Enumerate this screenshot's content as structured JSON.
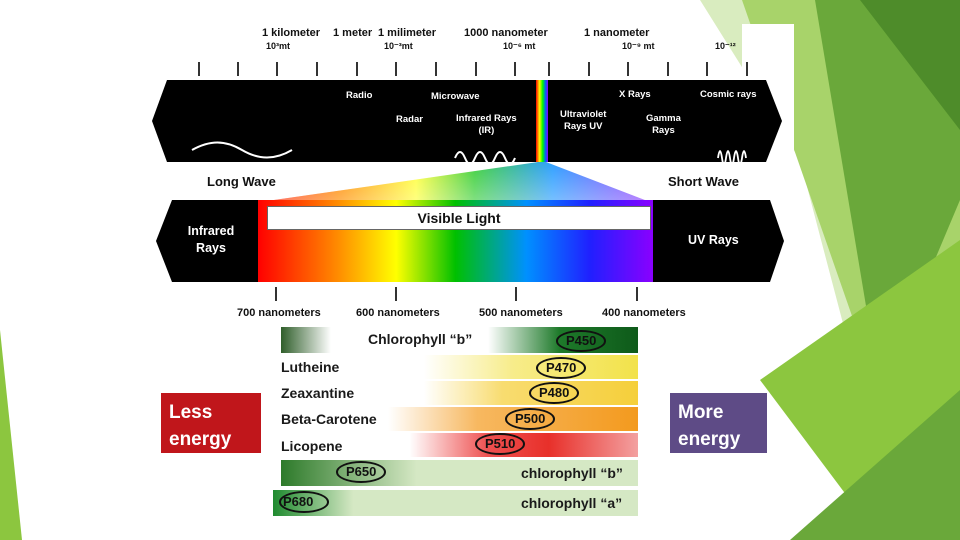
{
  "scale": {
    "labels": [
      "1 kilometer",
      "1 meter",
      "1 milimeter",
      "1000 nanometer",
      "1 nanometer"
    ],
    "subs": [
      "10³mt",
      "10⁻³mt",
      "10⁻⁶ mt",
      "10⁻⁹ mt",
      "10⁻¹²"
    ]
  },
  "bands": {
    "radio": "Radio",
    "microwave": "Microwave",
    "radar": "Radar",
    "infrared": "Infrared Rays",
    "infrared_abbr": "(IR)",
    "ultraviolet": "Ultraviolet",
    "ultraviolet_abbr": "Rays  UV",
    "xrays": "X Rays",
    "cosmic": "Cosmic rays",
    "gamma": "Gamma",
    "gamma2": "Rays"
  },
  "long_wave": "Long Wave",
  "short_wave": "Short Wave",
  "visible": {
    "title": "Visible Light",
    "left1": "Infrared",
    "left2": "Rays",
    "right": "UV Rays"
  },
  "nm": [
    "700 nanometers",
    "600 nanometers",
    "500 nanometers",
    "400 nanometers"
  ],
  "pigments": [
    {
      "name": "Chlorophyll  “b”",
      "peak": "P450",
      "color": "#1e7a2a"
    },
    {
      "name": "Lutheine",
      "peak": "P470",
      "color": "#f2e24a"
    },
    {
      "name": "Zeaxantine",
      "peak": "P480",
      "color": "#f5cf3a"
    },
    {
      "name": "Beta-Carotene",
      "peak": "P500",
      "color": "#f39a1e"
    },
    {
      "name": "Licopene",
      "peak": "P510",
      "color": "#e8302a"
    },
    {
      "name": "chlorophyll “b”",
      "peak": "P650",
      "color": "#2d7a2a"
    },
    {
      "name": "chlorophyll “a”",
      "peak": "P680",
      "color": "#1f8a2f"
    }
  ],
  "less_energy": "Less energy",
  "more_energy": "More energy",
  "colors": {
    "less_energy_bg": "#c0161b",
    "more_energy_bg": "#5e4b86",
    "green_light": "#a8d36a",
    "green_mid": "#7ab648",
    "green_dark": "#4e8c2a"
  }
}
